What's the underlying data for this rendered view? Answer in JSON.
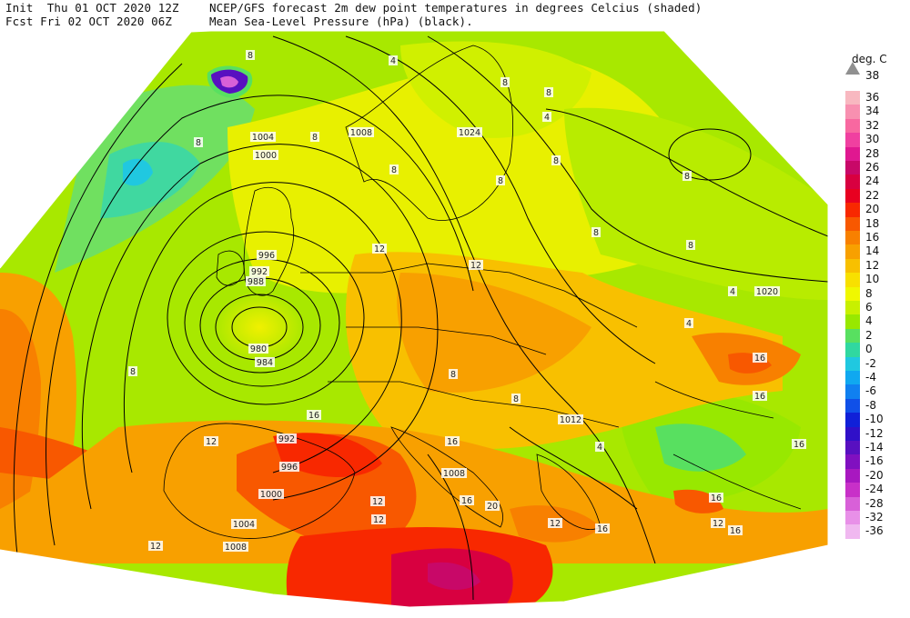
{
  "header": {
    "line1_left": "Init  Thu 01 OCT 2020 12Z",
    "line2_left": "Fcst Fri 02 OCT 2020 06Z",
    "line1_right": "NCEP/GFS forecast 2m dew point temperatures in degrees Celcius (shaded)",
    "line2_right": "Mean Sea-Level Pressure (hPa) (black)."
  },
  "legend": {
    "unit": "deg. C",
    "top_label": "38",
    "entries": [
      {
        "label": "36",
        "color": "#f8b8c0"
      },
      {
        "label": "34",
        "color": "#f890b0"
      },
      {
        "label": "32",
        "color": "#f868a0"
      },
      {
        "label": "30",
        "color": "#f040a0"
      },
      {
        "label": "28",
        "color": "#e01890"
      },
      {
        "label": "26",
        "color": "#c80868"
      },
      {
        "label": "24",
        "color": "#d80040"
      },
      {
        "label": "22",
        "color": "#e80020"
      },
      {
        "label": "20",
        "color": "#f82800"
      },
      {
        "label": "18",
        "color": "#f85800"
      },
      {
        "label": "16",
        "color": "#f88000"
      },
      {
        "label": "14",
        "color": "#f8a000"
      },
      {
        "label": "12",
        "color": "#f8c000"
      },
      {
        "label": "10",
        "color": "#f8e000"
      },
      {
        "label": "8",
        "color": "#f0f800"
      },
      {
        "label": "6",
        "color": "#c8f000"
      },
      {
        "label": "4",
        "color": "#98e800"
      },
      {
        "label": "2",
        "color": "#58e060"
      },
      {
        "label": "0",
        "color": "#30d8a0"
      },
      {
        "label": "-2",
        "color": "#20c8e0"
      },
      {
        "label": "-4",
        "color": "#10a8f0"
      },
      {
        "label": "-6",
        "color": "#1080f0"
      },
      {
        "label": "-8",
        "color": "#1050e8"
      },
      {
        "label": "-10",
        "color": "#1020d8"
      },
      {
        "label": "-12",
        "color": "#3010c8"
      },
      {
        "label": "-14",
        "color": "#5810c0"
      },
      {
        "label": "-16",
        "color": "#8010c0"
      },
      {
        "label": "-20",
        "color": "#a818c0"
      },
      {
        "label": "-24",
        "color": "#c830c8"
      },
      {
        "label": "-28",
        "color": "#d860d8"
      },
      {
        "label": "-32",
        "color": "#e890e8"
      },
      {
        "label": "-36",
        "color": "#f0b8f0"
      }
    ]
  },
  "isobar_labels": [
    "1004",
    "1000",
    "1008",
    "1024",
    "996",
    "992",
    "988",
    "980",
    "984",
    "992",
    "996",
    "1000",
    "1004",
    "1008",
    "1012",
    "1020",
    "1008"
  ],
  "dewpoint_labels": [
    "4",
    "8",
    "8",
    "8",
    "8",
    "8",
    "4",
    "8",
    "8",
    "8",
    "8",
    "8",
    "8",
    "4",
    "4",
    "4",
    "12",
    "12",
    "16",
    "16",
    "16",
    "16",
    "12",
    "16",
    "16",
    "12",
    "12",
    "12",
    "16",
    "20",
    "16",
    "16",
    "12",
    "8",
    "8",
    "8",
    "12"
  ]
}
